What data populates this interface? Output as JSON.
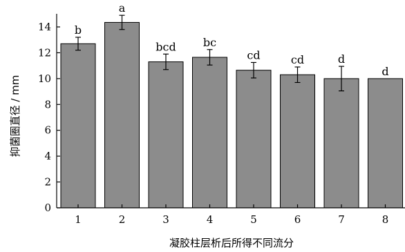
{
  "chart_data": {
    "type": "bar",
    "title": "",
    "xlabel": "凝胶柱层析后所得不同流分",
    "ylabel": "抑菌圈直径 / mm",
    "categories": [
      "1",
      "2",
      "3",
      "4",
      "5",
      "6",
      "7",
      "8"
    ],
    "values": [
      12.7,
      14.35,
      11.3,
      11.65,
      10.65,
      10.3,
      10.0,
      10.0
    ],
    "errors": [
      0.5,
      0.55,
      0.6,
      0.6,
      0.6,
      0.6,
      0.95,
      0.0
    ],
    "significance_labels": [
      "b",
      "a",
      "bcd",
      "bc",
      "cd",
      "cd",
      "d",
      "d"
    ],
    "yticks": [
      0,
      2,
      4,
      6,
      8,
      10,
      12,
      14
    ],
    "ylim": [
      0,
      15
    ],
    "grid": false,
    "bar_color": "#8c8c8c",
    "bar_edge_color": "#000000"
  }
}
